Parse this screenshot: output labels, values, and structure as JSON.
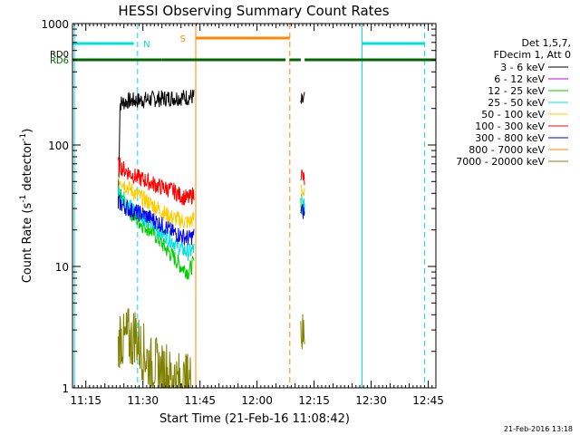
{
  "chart_data": {
    "type": "line",
    "title": "HESSI Observing Summary Count Rates",
    "xlabel": "Start Time (21-Feb-16 11:08:42)",
    "ylabel_main": "Count Rate (s",
    "ylabel_sup1": "-1",
    "ylabel_mid": " detector",
    "ylabel_sup2": "-1",
    "ylabel_end": ")",
    "yscale": "log",
    "ylim": [
      1,
      1000
    ],
    "xlim_minutes": [
      671.5,
      767.0
    ],
    "x_ticks": [
      {
        "label": "11:15",
        "minute": 675
      },
      {
        "label": "11:30",
        "minute": 690
      },
      {
        "label": "11:45",
        "minute": 705
      },
      {
        "label": "12:00",
        "minute": 720
      },
      {
        "label": "12:15",
        "minute": 735
      },
      {
        "label": "12:30",
        "minute": 750
      },
      {
        "label": "12:45",
        "minute": 765
      }
    ],
    "y_ticks": [
      {
        "label": "1",
        "value": 1
      },
      {
        "label": "10",
        "value": 10
      },
      {
        "label": "100",
        "value": 100
      },
      {
        "label": "1000",
        "value": 1000
      }
    ],
    "legend_header": [
      "Det 1,5,7,",
      "FDecim 1, Att 0"
    ],
    "series": [
      {
        "name": "3 - 6 keV",
        "color": "#000000",
        "segments": [
          {
            "x": [
              683.5,
              684.0,
              686.0,
              690.0,
              694.0,
              698.0,
              702.0,
              703.5
            ],
            "y": [
              30,
              220,
              230,
              235,
              240,
              245,
              248,
              250
            ]
          },
          {
            "x": [
              731.5,
              732.5
            ],
            "y": [
              220,
              240
            ]
          }
        ]
      },
      {
        "name": "6 - 12 keV",
        "color": "#cc00cc",
        "segments": []
      },
      {
        "name": "12 - 25 keV",
        "color": "#00cc00",
        "segments": [
          {
            "x": [
              683.5,
              684.5,
              686.0,
              688.0,
              690.0,
              692.0,
              694.0,
              696.0,
              698.0,
              700.0,
              702.0,
              703.5
            ],
            "y": [
              40,
              36,
              30,
              25,
              22,
              20,
              17,
              14,
              12,
              10,
              9,
              11
            ]
          },
          {
            "x": [
              731.5,
              732.5
            ],
            "y": [
              32,
              28
            ]
          }
        ]
      },
      {
        "name": "25 - 50 keV",
        "color": "#00e0e0",
        "segments": [
          {
            "x": [
              683.5,
              684.5,
              686.0,
              688.0,
              690.0,
              692.0,
              694.0,
              696.0,
              698.0,
              700.0,
              702.0,
              703.5
            ],
            "y": [
              42,
              38,
              33,
              29,
              26,
              23,
              20,
              18,
              16,
              14,
              13,
              14
            ]
          },
          {
            "x": [
              731.5,
              732.5
            ],
            "y": [
              36,
              30
            ]
          }
        ]
      },
      {
        "name": "50 - 100 keV",
        "color": "#ffcc00",
        "segments": [
          {
            "x": [
              683.5,
              684.5,
              686.0,
              688.0,
              690.0,
              692.0,
              694.0,
              696.0,
              698.0,
              700.0,
              702.0,
              703.5
            ],
            "y": [
              55,
              50,
              45,
              40,
              36,
              33,
              30,
              27,
              25,
              24,
              23,
              25
            ]
          },
          {
            "x": [
              731.5,
              732.5
            ],
            "y": [
              46,
              38
            ]
          }
        ]
      },
      {
        "name": "100 - 300 keV",
        "color": "#ff0000",
        "segments": [
          {
            "x": [
              683.5,
              684.5,
              686.0,
              688.0,
              690.0,
              692.0,
              694.0,
              696.0,
              698.0,
              700.0,
              702.0,
              703.5
            ],
            "y": [
              70,
              65,
              60,
              55,
              52,
              49,
              46,
              44,
              42,
              38,
              36,
              40
            ]
          },
          {
            "x": [
              731.5,
              732.5
            ],
            "y": [
              60,
              50
            ]
          }
        ]
      },
      {
        "name": "300 - 800 keV",
        "color": "#0000ee",
        "segments": [
          {
            "x": [
              683.5,
              684.5,
              686.0,
              688.0,
              690.0,
              692.0,
              694.0,
              696.0,
              698.0,
              700.0,
              702.0,
              703.5
            ],
            "y": [
              34,
              32,
              30,
              28,
              27,
              25,
              23,
              21,
              19,
              18,
              17,
              18
            ]
          },
          {
            "x": [
              731.5,
              732.5
            ],
            "y": [
              30,
              27
            ]
          }
        ]
      },
      {
        "name": "800 - 7000 keV",
        "color": "#ff8800",
        "segments": []
      },
      {
        "name": "7000 - 20000 keV",
        "color": "#808000",
        "segments": [
          {
            "x": [
              683.5,
              684.0,
              685.0,
              686.0,
              687.0,
              688.0,
              689.0,
              690.0,
              691.0,
              692.0,
              693.0,
              694.0,
              695.0,
              696.0,
              697.0,
              698.0,
              699.0,
              700.0,
              701.0,
              702.0,
              703.0
            ],
            "y": [
              2.0,
              2.8,
              2.3,
              2.7,
              2.4,
              2.9,
              2.2,
              2.0,
              1.8,
              1.5,
              1.6,
              1.4,
              1.3,
              1.5,
              1.2,
              1.3,
              1.1,
              1.2,
              1.05,
              1.2,
              1.1
            ]
          },
          {
            "x": [
              731.5,
              732.0,
              732.5
            ],
            "y": [
              3.5,
              2.5,
              3.2
            ]
          }
        ]
      }
    ],
    "vertical_lines": [
      {
        "minute": 672.0,
        "color": "#00e0e0",
        "style": "solid"
      },
      {
        "minute": 688.6,
        "color": "#00e0e0",
        "style": "dashed"
      },
      {
        "minute": 703.9,
        "color": "#ff8800",
        "style": "solid"
      },
      {
        "minute": 728.6,
        "color": "#ff8800",
        "style": "dashed"
      },
      {
        "minute": 747.6,
        "color": "#00e0e0",
        "style": "solid"
      },
      {
        "minute": 764.0,
        "color": "#00e0e0",
        "style": "dashed"
      }
    ],
    "flag_bars": [
      {
        "label": "N",
        "color": "#00e0e0",
        "segments": [
          [
            671.5,
            687.6
          ],
          [
            747.6,
            764.0
          ]
        ],
        "label_minute": 691.0
      },
      {
        "label": "S",
        "color": "#ff8800",
        "segments": [
          [
            703.9,
            728.6
          ]
        ],
        "label_minute": 700.5
      },
      {
        "label": "RD0",
        "color": "#006600",
        "segments": []
      },
      {
        "label": "RD6",
        "color": "#006600",
        "segments": [
          [
            671.5,
            695.0
          ],
          [
            695.0,
            727.5
          ],
          [
            728.5,
            731.5
          ],
          [
            732.5,
            767.0
          ]
        ]
      }
    ],
    "footer_date": "21-Feb-2016 13:18"
  }
}
